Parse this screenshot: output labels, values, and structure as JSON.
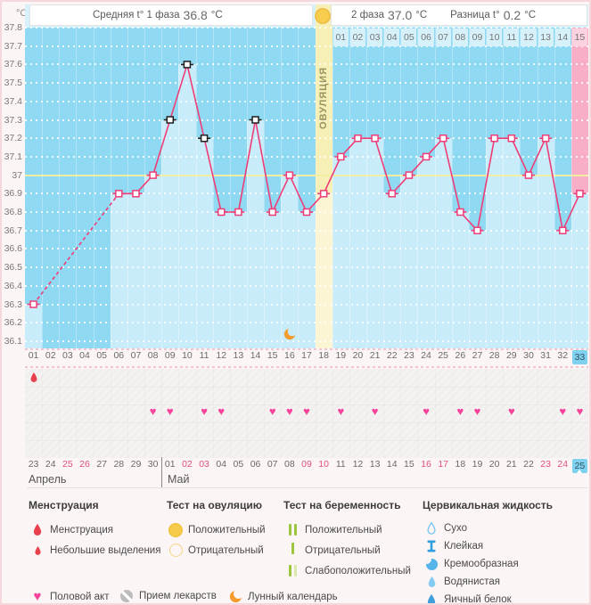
{
  "header": {
    "unit_label": "°C",
    "phase1_label": "Средняя t° 1 фаза",
    "phase1_value": "36.8",
    "phase1_unit": "°C",
    "phase2_label": "2 фаза",
    "phase2_value": "37.0",
    "phase2_unit": "°C",
    "diff_label": "Разница t°",
    "diff_value": "0.2",
    "diff_unit": "°C",
    "ovulation_test_icon": "positive-ovulation-test"
  },
  "chart_data": {
    "type": "line",
    "title": "Basal body temperature cycle chart",
    "ylabel": "°C",
    "ylim": [
      36.1,
      37.8
    ],
    "ytick_step": 0.1,
    "ytick_labels": [
      "37.8",
      "37.7",
      "37.6",
      "37.5",
      "37.4",
      "37.3",
      "37.2",
      "37.1",
      "37",
      "36.9",
      "36.8",
      "36.7",
      "36.6",
      "36.5",
      "36.4",
      "36.3",
      "36.2",
      "36.1"
    ],
    "coverline": 37.0,
    "grid": "dotted-white",
    "cycle_day_labels": [
      "01",
      "02",
      "03",
      "04",
      "05",
      "06",
      "07",
      "08",
      "09",
      "10",
      "11",
      "12",
      "13",
      "14",
      "15",
      "16",
      "17",
      "18",
      "19",
      "20",
      "21",
      "22",
      "23",
      "24",
      "25",
      "26",
      "27",
      "28",
      "29",
      "30",
      "31",
      "32",
      "33"
    ],
    "series": [
      {
        "name": "Температура",
        "temps_by_cycle_day": [
          36.3,
          null,
          null,
          null,
          null,
          36.9,
          36.9,
          37.0,
          37.3,
          37.6,
          37.2,
          36.8,
          36.8,
          37.3,
          36.8,
          37.0,
          36.8,
          36.9,
          37.1,
          37.2,
          37.2,
          36.9,
          37.0,
          37.1,
          37.2,
          36.8,
          36.7,
          37.2,
          37.2,
          37.0,
          37.2,
          36.7,
          36.9
        ]
      }
    ],
    "excluded_measurement_days": [
      9,
      10,
      11,
      14
    ],
    "dashed_gap_between_days": [
      1,
      6
    ],
    "ovulation_day": 18,
    "ovulation_label": "ОВУЛЯЦИЯ",
    "phase2_day_labels": [
      "01",
      "02",
      "03",
      "04",
      "05",
      "06",
      "07",
      "08",
      "09",
      "10",
      "11",
      "12",
      "13",
      "14",
      "15"
    ],
    "phase2_start_day": 19,
    "highlighted_cycle_day": "33",
    "moon_calendar_day": 16,
    "menstruation_days": [
      1
    ],
    "intercourse_days": [
      8,
      9,
      11,
      12,
      15,
      16,
      17,
      19,
      21,
      24,
      26,
      27,
      29,
      32,
      33
    ]
  },
  "calendar": {
    "months": [
      {
        "name": "Апрель",
        "span": 8
      },
      {
        "name": "Май",
        "span": 25
      }
    ],
    "dates": [
      {
        "label": "23",
        "red": false
      },
      {
        "label": "24",
        "red": false
      },
      {
        "label": "25",
        "red": true
      },
      {
        "label": "26",
        "red": true
      },
      {
        "label": "27",
        "red": false
      },
      {
        "label": "28",
        "red": false
      },
      {
        "label": "29",
        "red": false
      },
      {
        "label": "30",
        "red": false
      },
      {
        "label": "01",
        "red": false
      },
      {
        "label": "02",
        "red": true
      },
      {
        "label": "03",
        "red": true
      },
      {
        "label": "04",
        "red": false
      },
      {
        "label": "05",
        "red": false
      },
      {
        "label": "06",
        "red": false
      },
      {
        "label": "07",
        "red": false
      },
      {
        "label": "08",
        "red": false
      },
      {
        "label": "09",
        "red": true
      },
      {
        "label": "10",
        "red": true
      },
      {
        "label": "11",
        "red": false
      },
      {
        "label": "12",
        "red": false
      },
      {
        "label": "13",
        "red": false
      },
      {
        "label": "14",
        "red": false
      },
      {
        "label": "15",
        "red": false
      },
      {
        "label": "16",
        "red": true
      },
      {
        "label": "17",
        "red": true
      },
      {
        "label": "18",
        "red": false
      },
      {
        "label": "19",
        "red": false
      },
      {
        "label": "20",
        "red": false
      },
      {
        "label": "21",
        "red": false
      },
      {
        "label": "22",
        "red": false
      },
      {
        "label": "23",
        "red": true
      },
      {
        "label": "24",
        "red": true
      },
      {
        "label": "25",
        "red": false,
        "today": true
      }
    ]
  },
  "legend": {
    "sections": [
      {
        "title": "Менструация",
        "items": [
          {
            "icon": "drop-red-large",
            "name": "menstruation-icon",
            "label": "Менструация"
          },
          {
            "icon": "drop-red-small",
            "name": "spotting-icon",
            "label": "Небольшие выделения"
          }
        ]
      },
      {
        "title": "Тест на овуляцию",
        "items": [
          {
            "icon": "circle-yellow-filled",
            "name": "ovulation-positive-icon",
            "label": "Положительный"
          },
          {
            "icon": "circle-yellow-outline",
            "name": "ovulation-negative-icon",
            "label": "Отрицательный"
          }
        ]
      },
      {
        "title": "Тест на беременность",
        "items": [
          {
            "icon": "bars-green-two",
            "name": "pregnancy-positive-icon",
            "label": "Положительный"
          },
          {
            "icon": "bar-green-one",
            "name": "pregnancy-negative-icon",
            "label": "Отрицательный"
          },
          {
            "icon": "bars-green-weak",
            "name": "pregnancy-weak-positive-icon",
            "label": "Слабоположительный"
          }
        ]
      },
      {
        "title": "Цервикальная жидкость",
        "items": [
          {
            "icon": "drop-blue-outline",
            "name": "fluid-dry-icon",
            "label": "Сухо"
          },
          {
            "icon": "ibeam-blue",
            "name": "fluid-sticky-icon",
            "label": "Клейкая"
          },
          {
            "icon": "crescent-blue",
            "name": "fluid-creamy-icon",
            "label": "Кремообразная"
          },
          {
            "icon": "drop-blue-light",
            "name": "fluid-watery-icon",
            "label": "Водянистая"
          },
          {
            "icon": "drop-blue-solid",
            "name": "fluid-eggwhite-icon",
            "label": "Яичный белок"
          }
        ]
      }
    ],
    "bottom_items": [
      {
        "icon": "heart-pink",
        "name": "intercourse-icon",
        "label": "Половой акт"
      },
      {
        "icon": "pill-gray",
        "name": "medication-icon",
        "label": "Прием лекарств"
      },
      {
        "icon": "moon-orange",
        "name": "moon-calendar-icon",
        "label": "Лунный календарь"
      }
    ]
  },
  "colors": {
    "line": "#ee3d77",
    "excluded_marker": "#1f1f1f",
    "chart_bg": "#90d9f2",
    "bar": "#c9ecfa",
    "coverline": "#f3eda2",
    "ovulation_column": "#f6efb6",
    "ovulation_bar": "#fbf5d3",
    "pink_column": "#f9aec8",
    "phase2_cell": "#d7f1fb",
    "phase2_cell_pink": "#fcd2e0",
    "today_highlight": "#7ed2f0",
    "heart": "#f5429b",
    "menstruation_red": "#e8414d",
    "moon_orange": "#f59b2b",
    "test_green": "#9bc53d",
    "test_green_pale": "#d9e9ae",
    "fluid_blue": "#45aee8",
    "red_date": "#e0527a"
  }
}
